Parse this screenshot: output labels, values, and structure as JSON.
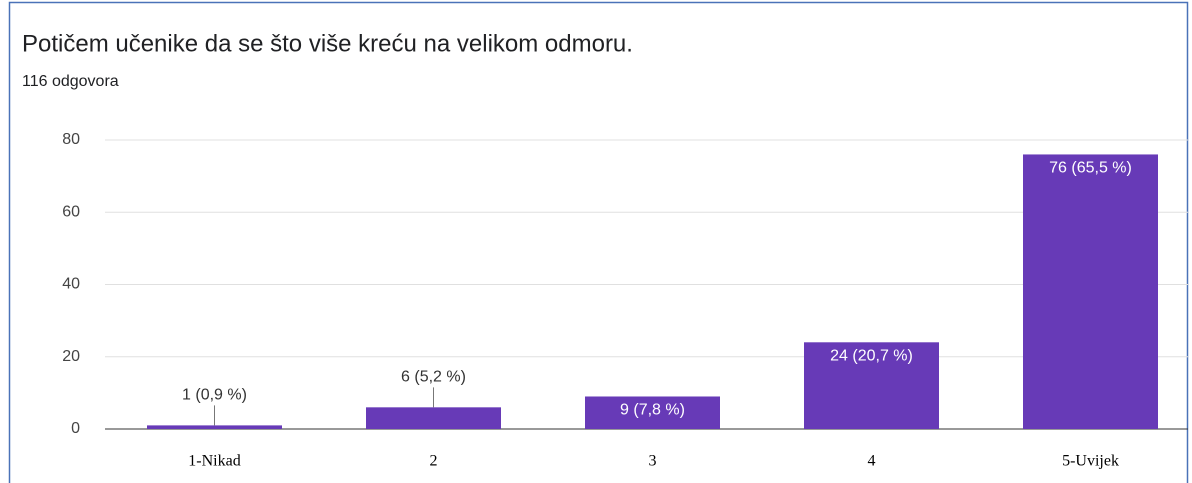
{
  "chart_data": {
    "type": "bar",
    "title": "Potičem učenike da se što više kreću na velikom odmoru.",
    "subtitle": "116 odgovora",
    "categories": [
      "1-Nikad",
      "2",
      "3",
      "4",
      "5-Uvijek"
    ],
    "values": [
      1,
      6,
      9,
      24,
      76
    ],
    "value_labels": [
      "1 (0,9 %)",
      "6 (5,2 %)",
      "9 (7,8 %)",
      "24 (20,7 %)",
      "76 (65,5 %)"
    ],
    "color": "#673ab7",
    "ylim": [
      0,
      80
    ],
    "yticks": [
      0,
      20,
      40,
      60,
      80
    ],
    "grid": true
  }
}
